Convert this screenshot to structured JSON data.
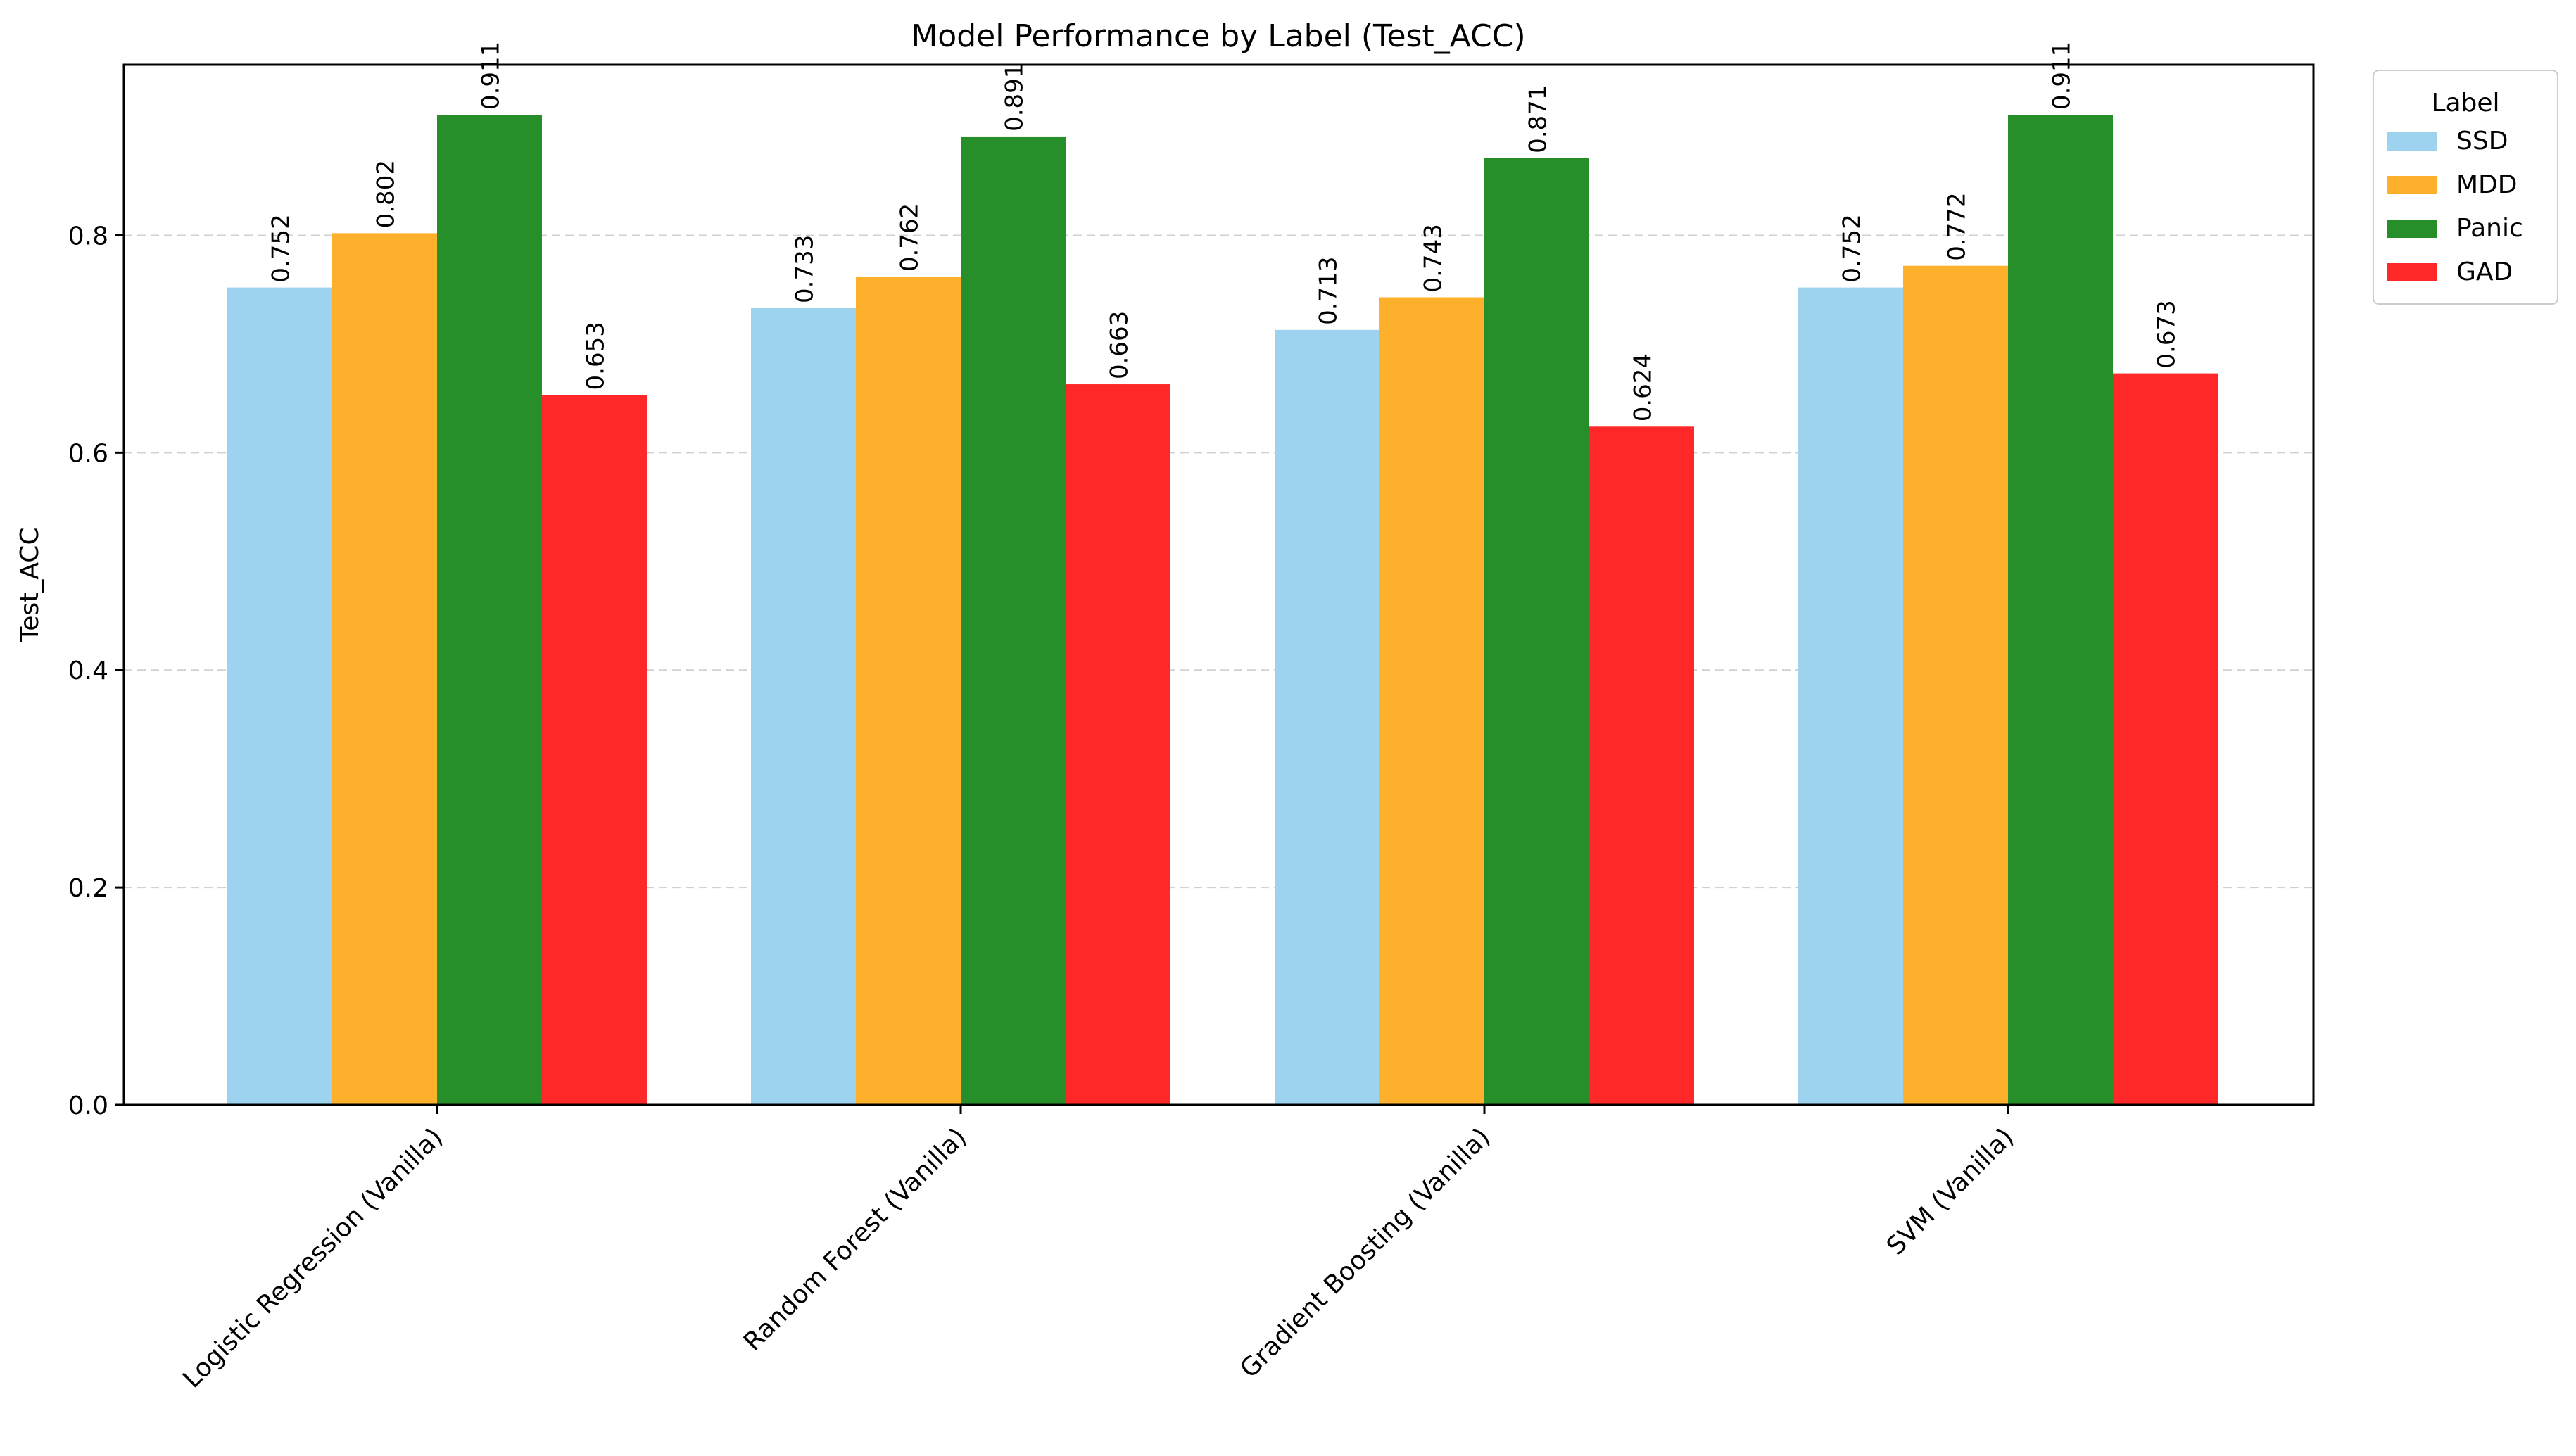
{
  "chart_data": {
    "type": "bar",
    "title": "Model Performance by Label (Test_ACC)",
    "xlabel": "",
    "ylabel": "Test_ACC",
    "ylim": [
      0,
      0.957
    ],
    "yticks": [
      0.0,
      0.2,
      0.4,
      0.6,
      0.8
    ],
    "ytick_labels": [
      "0.0",
      "0.2",
      "0.4",
      "0.6",
      "0.8"
    ],
    "grid": "y-dashed",
    "categories": [
      "Logistic Regression (Vanilla)",
      "Random Forest (Vanilla)",
      "Gradient Boosting (Vanilla)",
      "SVM (Vanilla)"
    ],
    "legend": {
      "title": "Label",
      "placement": "outside-top-right"
    },
    "series": [
      {
        "name": "SSD",
        "color": "#9dd3ee",
        "values": [
          0.752,
          0.733,
          0.713,
          0.752
        ]
      },
      {
        "name": "MDD",
        "color": "#fdb02b",
        "values": [
          0.802,
          0.762,
          0.743,
          0.772
        ]
      },
      {
        "name": "Panic",
        "color": "#278f2a",
        "values": [
          0.911,
          0.891,
          0.871,
          0.911
        ]
      },
      {
        "name": "GAD",
        "color": "#fe2828",
        "values": [
          0.653,
          0.663,
          0.624,
          0.673
        ]
      }
    ],
    "data_labels": [
      [
        "0.752",
        "0.733",
        "0.713",
        "0.752"
      ],
      [
        "0.802",
        "0.762",
        "0.743",
        "0.772"
      ],
      [
        "0.911",
        "0.891",
        "0.871",
        "0.911"
      ],
      [
        "0.653",
        "0.663",
        "0.624",
        "0.673"
      ]
    ]
  }
}
